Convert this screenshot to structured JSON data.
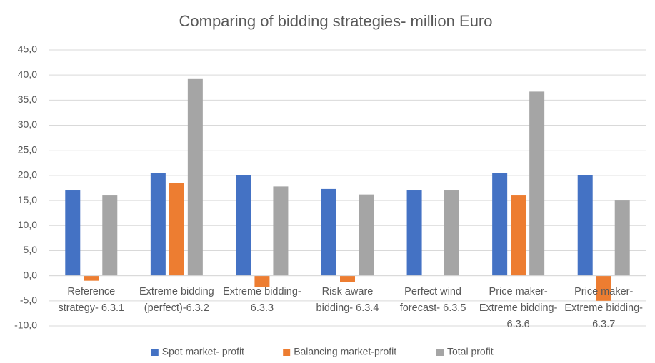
{
  "chart_data": {
    "type": "bar",
    "title": "Comparing of bidding strategies- million Euro",
    "categories": [
      "Reference strategy- 6.3.1",
      "Extreme bidding (perfect)-6.3.2",
      "Extreme bidding-6.3.3",
      "Risk aware bidding- 6.3.4",
      "Perfect wind forecast- 6.3.5",
      "Price maker- Extreme bidding- 6.3.6",
      "Price maker- Extreme bidding- 6.3.7"
    ],
    "series": [
      {
        "name": "Spot market- profit",
        "color": "#4472c4",
        "values": [
          17.0,
          20.5,
          20.0,
          17.3,
          17.0,
          20.5,
          20.0
        ]
      },
      {
        "name": "Balancing market-profit",
        "color": "#ed7d31",
        "values": [
          -1.0,
          18.5,
          -2.2,
          -1.2,
          0,
          16.0,
          -5.0
        ]
      },
      {
        "name": "Total profit",
        "color": "#a5a5a5",
        "values": [
          16.0,
          39.2,
          17.8,
          16.2,
          17.0,
          36.7,
          15.0
        ]
      }
    ],
    "ylim": [
      -10,
      45
    ],
    "yticks": [
      {
        "value": -10,
        "label": "-10,0"
      },
      {
        "value": -5,
        "label": "-5,0"
      },
      {
        "value": 0,
        "label": "0,0"
      },
      {
        "value": 5,
        "label": "5,0"
      },
      {
        "value": 10,
        "label": "10,0"
      },
      {
        "value": 15,
        "label": "15,0"
      },
      {
        "value": 20,
        "label": "20,0"
      },
      {
        "value": 25,
        "label": "25,0"
      },
      {
        "value": 30,
        "label": "30,0"
      },
      {
        "value": 35,
        "label": "35,0"
      },
      {
        "value": 40,
        "label": "40,0"
      },
      {
        "value": 45,
        "label": "45,0"
      }
    ],
    "grid": true,
    "legend": "bottom"
  }
}
